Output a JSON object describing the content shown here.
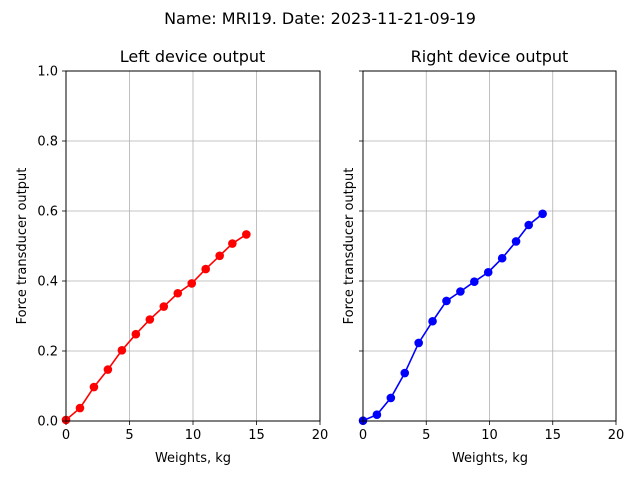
{
  "figure": {
    "suptitle": "Name: MRI19. Date: 2023-11-21-09-19"
  },
  "chart_data": [
    {
      "type": "line",
      "title": "Left device output",
      "xlabel": "Weights, kg",
      "ylabel": "Force transducer output",
      "xlim": [
        0,
        20
      ],
      "ylim": [
        0,
        1
      ],
      "xticks": [
        "0",
        "5",
        "10",
        "15",
        "20"
      ],
      "yticks": [
        "0.0",
        "0.2",
        "0.4",
        "0.6",
        "0.8",
        "1.0"
      ],
      "grid": true,
      "series": [
        {
          "color": "#ff0000",
          "marker": "circle",
          "x": [
            0,
            1.1,
            2.2,
            3.3,
            4.4,
            5.5,
            6.6,
            7.7,
            8.8,
            9.9,
            11.0,
            12.1,
            13.1,
            14.2
          ],
          "y": [
            0.003,
            0.037,
            0.097,
            0.147,
            0.202,
            0.248,
            0.29,
            0.327,
            0.365,
            0.393,
            0.434,
            0.472,
            0.507,
            0.533
          ]
        }
      ]
    },
    {
      "type": "line",
      "title": "Right device output",
      "xlabel": "Weights, kg",
      "ylabel": "Force transducer output",
      "xlim": [
        0,
        20
      ],
      "ylim": [
        0,
        1
      ],
      "xticks": [
        "0",
        "5",
        "10",
        "15",
        "20"
      ],
      "yticks": [
        "0.0",
        "0.2",
        "0.4",
        "0.6",
        "0.8",
        "1.0"
      ],
      "grid": true,
      "series": [
        {
          "color": "#0000ff",
          "marker": "circle",
          "x": [
            0,
            1.1,
            2.2,
            3.3,
            4.4,
            5.5,
            6.6,
            7.7,
            8.8,
            9.9,
            11.0,
            12.1,
            13.1,
            14.2
          ],
          "y": [
            0.001,
            0.018,
            0.066,
            0.137,
            0.223,
            0.285,
            0.343,
            0.37,
            0.398,
            0.425,
            0.465,
            0.513,
            0.56,
            0.592
          ]
        }
      ]
    }
  ]
}
